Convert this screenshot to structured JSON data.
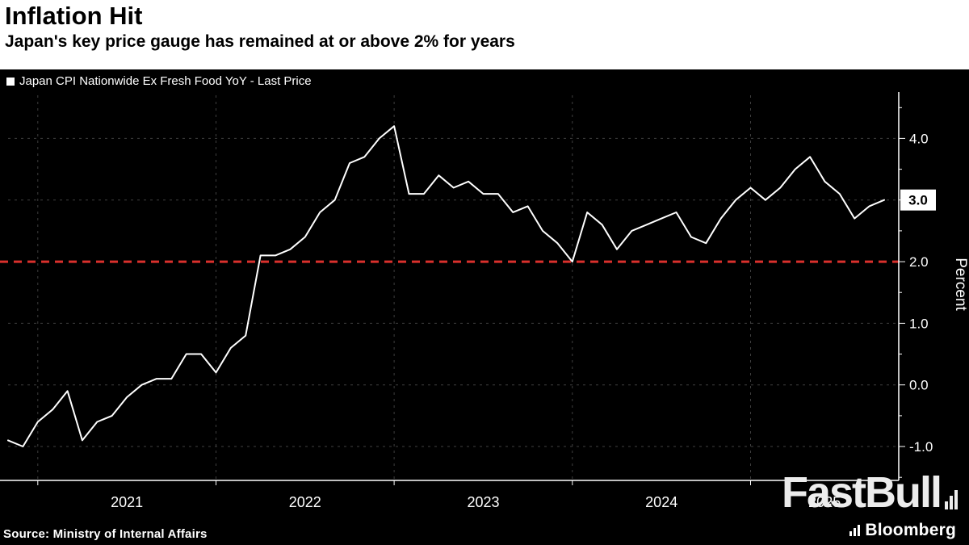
{
  "header": {
    "title": "Inflation Hit",
    "subtitle": "Japan's key price gauge has remained at or above 2% for years"
  },
  "legend": {
    "label": "Japan CPI Nationwide Ex Fresh Food YoY - Last Price"
  },
  "footer": {
    "source": "Source: Ministry of Internal Affairs",
    "watermark": "FastBull",
    "brand": "Bloomberg"
  },
  "chart_data": {
    "type": "line",
    "title": "Inflation Hit",
    "subtitle": "Japan's key price gauge has remained at or above 2% for years",
    "x": [
      "2020-11",
      "2020-12",
      "2021-01",
      "2021-02",
      "2021-03",
      "2021-04",
      "2021-05",
      "2021-06",
      "2021-07",
      "2021-08",
      "2021-09",
      "2021-10",
      "2021-11",
      "2021-12",
      "2022-01",
      "2022-02",
      "2022-03",
      "2022-04",
      "2022-05",
      "2022-06",
      "2022-07",
      "2022-08",
      "2022-09",
      "2022-10",
      "2022-11",
      "2022-12",
      "2023-01",
      "2023-02",
      "2023-03",
      "2023-04",
      "2023-05",
      "2023-06",
      "2023-07",
      "2023-08",
      "2023-09",
      "2023-10",
      "2023-11",
      "2023-12",
      "2024-01",
      "2024-02",
      "2024-03",
      "2024-04",
      "2024-05",
      "2024-06",
      "2024-07",
      "2024-08",
      "2024-09",
      "2024-10",
      "2024-11",
      "2024-12",
      "2025-01",
      "2025-02",
      "2025-03",
      "2025-04",
      "2025-05",
      "2025-06",
      "2025-07",
      "2025-08",
      "2025-09",
      "2025-10"
    ],
    "series": [
      {
        "name": "Japan CPI Nationwide Ex Fresh Food YoY - Last Price",
        "values": [
          -0.9,
          -1.0,
          -0.6,
          -0.4,
          -0.1,
          -0.9,
          -0.6,
          -0.5,
          -0.2,
          0.0,
          0.1,
          0.1,
          0.5,
          0.5,
          0.2,
          0.6,
          0.8,
          2.1,
          2.1,
          2.2,
          2.4,
          2.8,
          3.0,
          3.6,
          3.7,
          4.0,
          4.2,
          3.1,
          3.1,
          3.4,
          3.2,
          3.3,
          3.1,
          3.1,
          2.8,
          2.9,
          2.5,
          2.3,
          2.0,
          2.8,
          2.6,
          2.2,
          2.5,
          2.6,
          2.7,
          2.8,
          2.4,
          2.3,
          2.7,
          3.0,
          3.2,
          3.0,
          3.2,
          3.5,
          3.7,
          3.3,
          3.1,
          2.7,
          2.9,
          3.0
        ]
      }
    ],
    "x_axis_year_labels": [
      "2021",
      "2022",
      "2023",
      "2024",
      "2025"
    ],
    "ylabel": "Percent",
    "ylim": [
      -1.55,
      4.7
    ],
    "y_ticks": [
      4.0,
      3.0,
      2.0,
      1.0,
      0.0,
      -1.0
    ],
    "reference_line": {
      "value": 2.0,
      "color": "#d9302c",
      "style": "dashed"
    },
    "last_price": "3.0",
    "line_color": "#ffffff",
    "grid_color": "#3f3f3f",
    "background": "#000000",
    "legend_position": "top-left",
    "grid": true
  }
}
